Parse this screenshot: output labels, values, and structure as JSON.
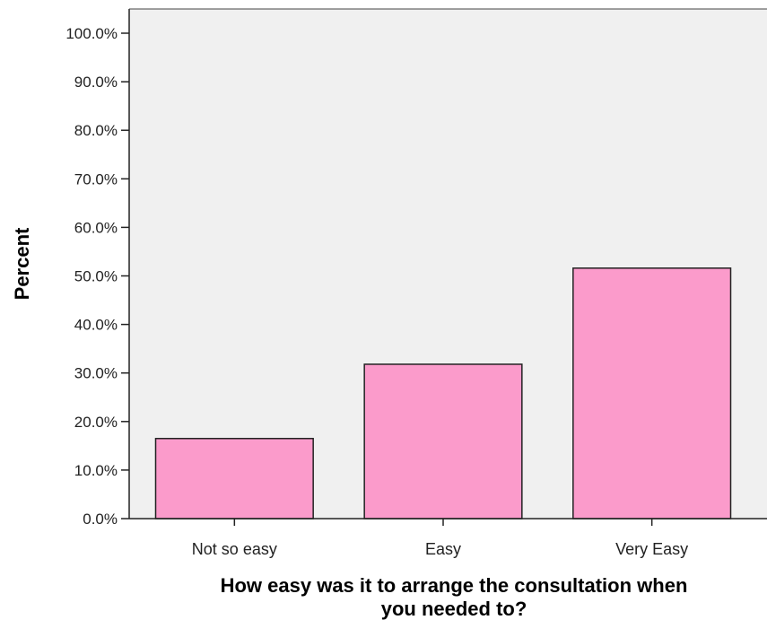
{
  "chart_data": {
    "type": "bar",
    "categories": [
      "Not so easy",
      "Easy",
      "Very Easy"
    ],
    "values": [
      16.5,
      31.8,
      51.6
    ],
    "xlabel_lines": [
      "How easy was it to arrange the consultation when",
      "you needed to?"
    ],
    "ylabel": "Percent",
    "ylim": [
      0,
      100
    ],
    "y_ticks": [
      "0.0%",
      "10.0%",
      "20.0%",
      "30.0%",
      "40.0%",
      "50.0%",
      "60.0%",
      "70.0%",
      "80.0%",
      "90.0%",
      "100.0%"
    ],
    "grid": false,
    "colors": {
      "bar_fill": "#fb9bcb",
      "bar_stroke": "#222222",
      "plot_background": "#f0f0f0"
    }
  }
}
